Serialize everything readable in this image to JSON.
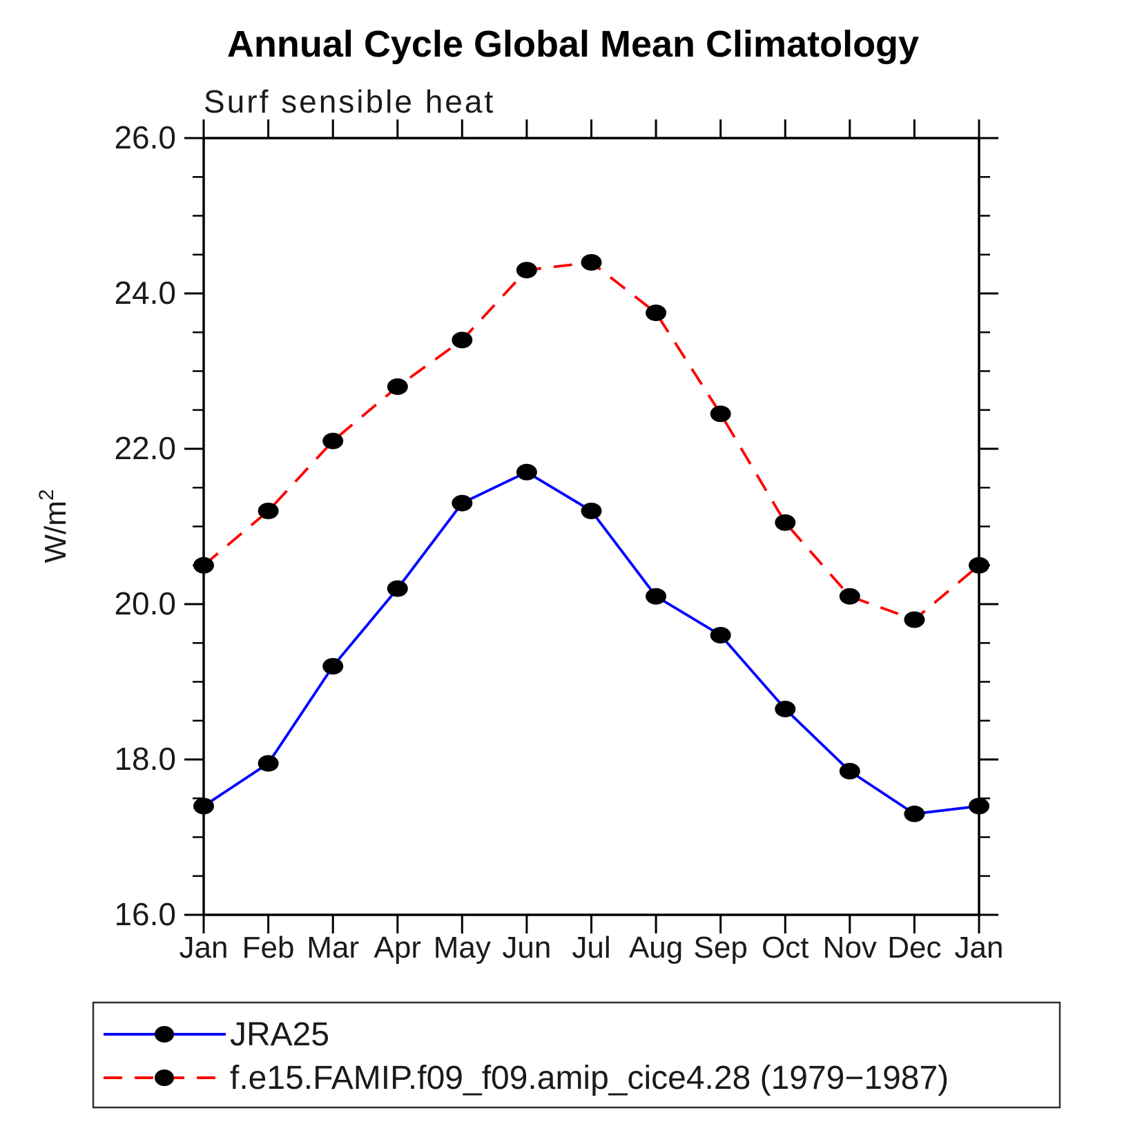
{
  "chart_data": {
    "type": "line",
    "title": "Annual Cycle Global Mean Climatology",
    "subtitle": "Surf sensible heat",
    "ylabel_base": "W/m",
    "ylabel_exp": "2",
    "categories": [
      "Jan",
      "Feb",
      "Mar",
      "Apr",
      "May",
      "Jun",
      "Jul",
      "Aug",
      "Sep",
      "Oct",
      "Nov",
      "Dec",
      "Jan"
    ],
    "ylim": [
      16.0,
      26.0
    ],
    "y_major_tick_interval": 2.0,
    "y_minor_tick_interval": 0.5,
    "y_tick_labels": [
      "26.0",
      "24.0",
      "22.0",
      "20.0",
      "18.0",
      "16.0"
    ],
    "y_tick_values": [
      26.0,
      24.0,
      22.0,
      20.0,
      18.0,
      16.0
    ],
    "grid": "off",
    "legend_position": "bottom",
    "axis_color": "#000000",
    "marker_color": "#000000",
    "series": [
      {
        "name": "JRA25",
        "color": "#0000FF",
        "style": "solid",
        "marker": "filled-dot",
        "values": [
          17.4,
          17.95,
          19.2,
          20.2,
          21.3,
          21.7,
          21.2,
          20.1,
          19.6,
          18.65,
          17.85,
          17.3,
          17.4
        ]
      },
      {
        "name": "f.e15.FAMIP.f09_f09.amip_cice4.28 (1979−1987)",
        "color": "#FF0000",
        "style": "dashed",
        "marker": "filled-dot",
        "values": [
          20.5,
          21.2,
          22.1,
          22.8,
          23.4,
          24.3,
          24.4,
          23.75,
          22.45,
          21.05,
          20.1,
          19.8,
          20.5
        ]
      }
    ]
  }
}
